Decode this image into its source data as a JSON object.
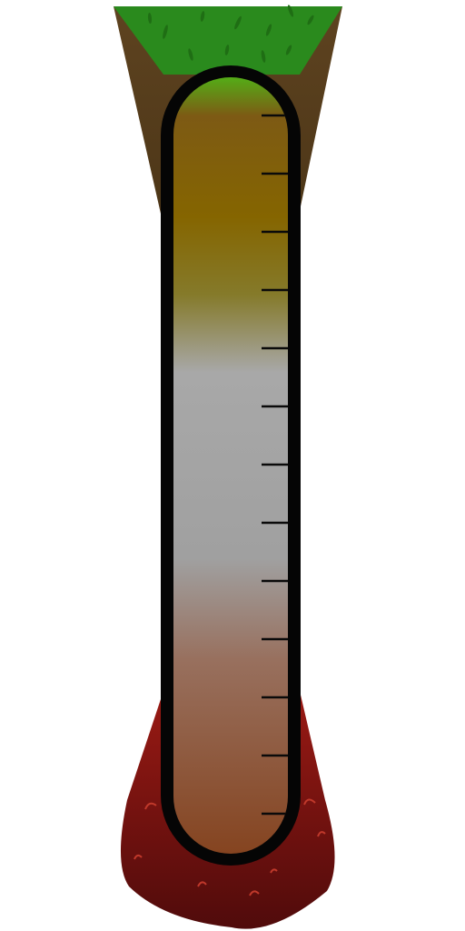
{
  "gauge": {
    "type": "vertical-depth-thermometer",
    "tick_count": 13,
    "layers": [
      {
        "name": "grass",
        "color": "#2a8a1d"
      },
      {
        "name": "soil",
        "color": "#5b4020"
      },
      {
        "name": "magma",
        "color": "#8a1414"
      }
    ],
    "tube_fill": {
      "stops": [
        {
          "offset": 0.0,
          "color": "#54ad17"
        },
        {
          "offset": 0.05,
          "color": "#7d5a14"
        },
        {
          "offset": 0.18,
          "color": "#856500"
        },
        {
          "offset": 0.28,
          "color": "#857a2a"
        },
        {
          "offset": 0.38,
          "color": "#a8a8a8"
        },
        {
          "offset": 0.62,
          "color": "#a0a0a0"
        },
        {
          "offset": 0.75,
          "color": "#98705e"
        },
        {
          "offset": 1.0,
          "color": "#854420"
        }
      ]
    },
    "outline_color": "#050505",
    "tick_color": "#0a0a0a"
  }
}
